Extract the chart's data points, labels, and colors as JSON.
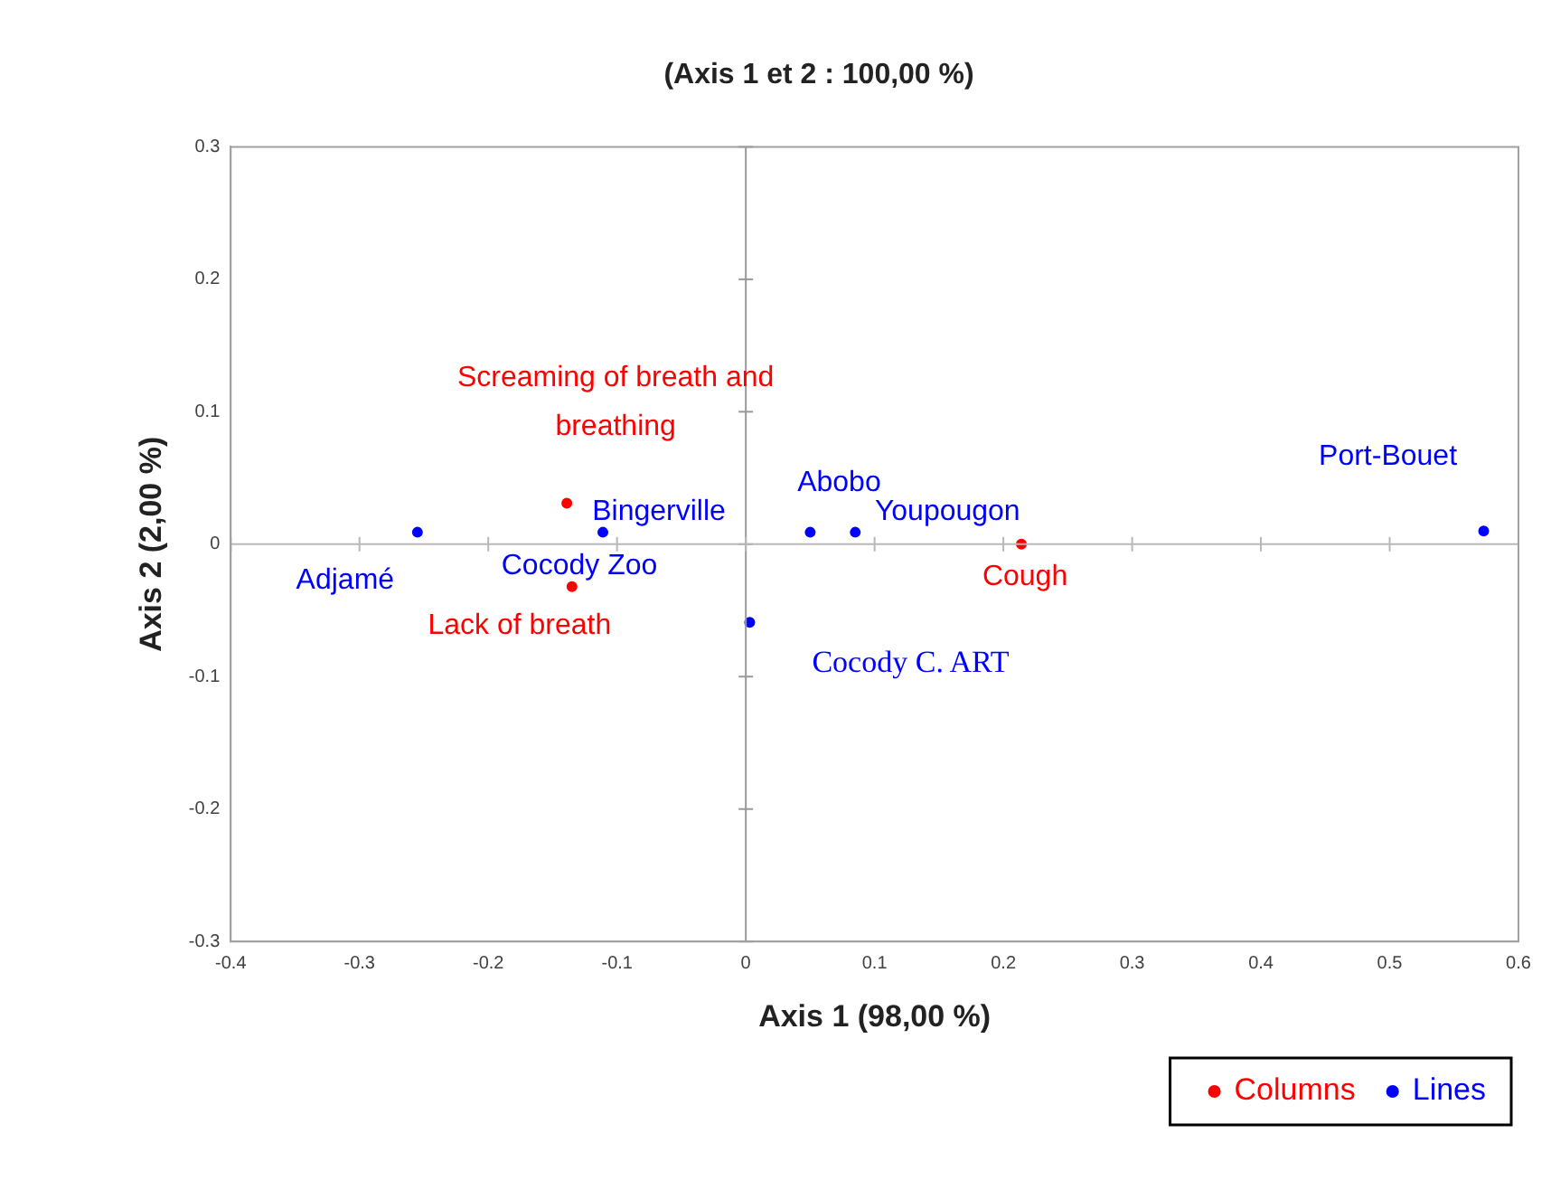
{
  "chart_data": {
    "type": "scatter",
    "title": "(Axis 1 et 2 : 100,00 %)",
    "xlabel": "Axis 1 (98,00 %)",
    "ylabel": "Axis 2 (2,00 %)",
    "series": [
      {
        "name": "Columns",
        "color": "#ff0000",
        "x": [
          -0.139,
          -0.135,
          0.214
        ],
        "values": [
          0.031,
          -0.032,
          0.0
        ]
      },
      {
        "name": "Lines",
        "color": "#0000ff",
        "x": [
          -0.255,
          -0.111,
          0.05,
          0.085,
          0.573,
          0.003
        ],
        "values": [
          0.009,
          0.009,
          0.009,
          0.009,
          0.01,
          -0.059
        ]
      }
    ],
    "annotations": [
      {
        "text": "Screaming of breath and breathing",
        "x": -0.139,
        "y": 0.031
      },
      {
        "text": "Lack of breath",
        "x": -0.135,
        "y": -0.032
      },
      {
        "text": "Cough",
        "x": 0.214,
        "y": 0.0
      },
      {
        "text": "Adjamé",
        "x": -0.255,
        "y": 0.009
      },
      {
        "text": "Bingerville",
        "x": -0.111,
        "y": 0.009
      },
      {
        "text": "Cocody Zoo",
        "x": -0.111,
        "y": 0.009
      },
      {
        "text": "Abobo",
        "x": 0.05,
        "y": 0.009
      },
      {
        "text": "Youpougon",
        "x": 0.085,
        "y": 0.009
      },
      {
        "text": "Port-Bouet",
        "x": 0.573,
        "y": 0.01
      },
      {
        "text": "Cocody C. ART",
        "x": 0.003,
        "y": -0.059
      }
    ],
    "xlim": [
      -0.4,
      0.6
    ],
    "xticks": [
      -0.4,
      -0.3,
      -0.2,
      -0.1,
      0,
      0.1,
      0.2,
      0.3,
      0.4,
      0.5,
      0.6
    ],
    "ylim": [
      -0.3,
      0.3
    ],
    "yticks": [
      -0.3,
      -0.2,
      -0.1,
      0,
      0.1,
      0.2,
      0.3
    ],
    "ref_lines": [
      {
        "axis": "x",
        "value": 0,
        "color": "#999999"
      },
      {
        "axis": "y",
        "value": 0,
        "color": "#b8b8b8"
      }
    ],
    "grid": false,
    "legend": "bottom right",
    "marker": "circle"
  }
}
